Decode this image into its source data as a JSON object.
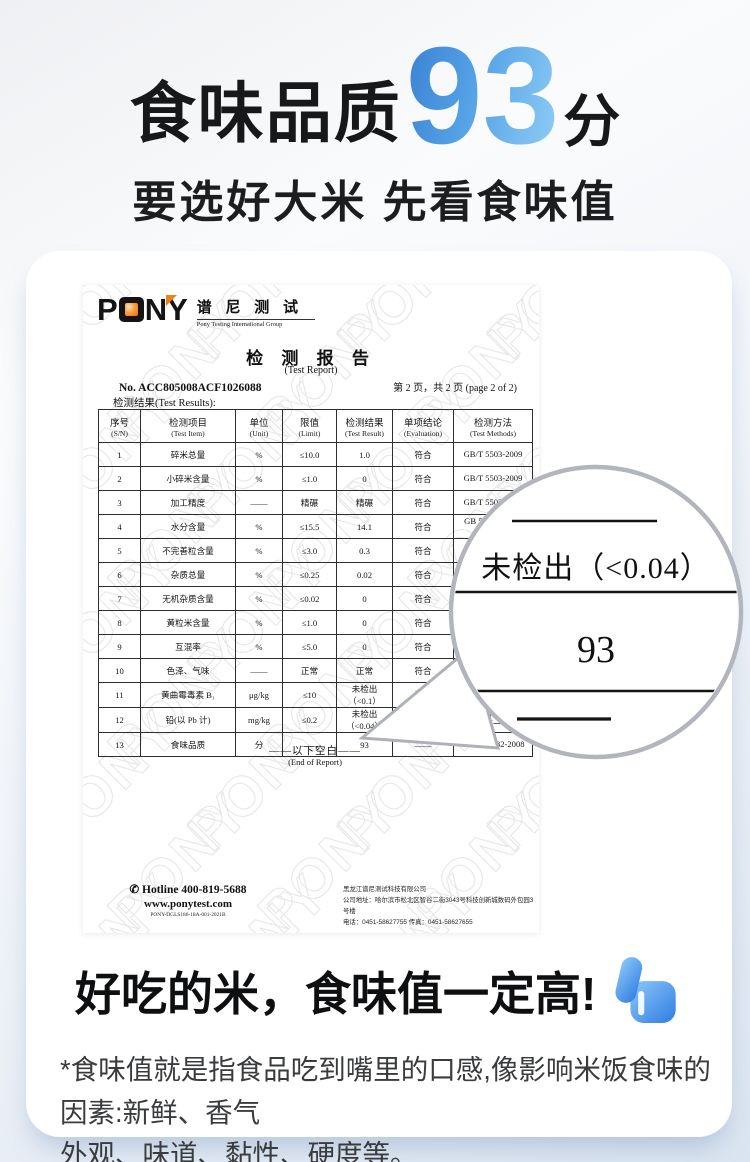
{
  "header": {
    "title_prefix": "食味品质",
    "score": "93",
    "score_unit": "分",
    "subtitle": "要选好大米 先看食味值"
  },
  "report": {
    "logo": {
      "brand_letter_p": "P",
      "brand_letter_n": "N",
      "brand_letter_y": "Y",
      "brand_cn": "谱 尼 测 试",
      "brand_en": "Pony Testing International Group"
    },
    "title_cn": "检 测 报 告",
    "title_en": "(Test Report)",
    "report_no": "No. ACC805008ACF1026088",
    "page_info": "第 2 页，共 2 页 (page 2 of 2)",
    "results_label": "检测结果(Test Results):",
    "watermark": "PONY",
    "table": {
      "headers": [
        {
          "zh": "序号",
          "en": "(S/N)"
        },
        {
          "zh": "检测项目",
          "en": "(Test Item)"
        },
        {
          "zh": "单位",
          "en": "(Unit)"
        },
        {
          "zh": "限值",
          "en": "(Limit)"
        },
        {
          "zh": "检测结果",
          "en": "(Test Result)"
        },
        {
          "zh": "单项结论",
          "en": "(Evaluation)"
        },
        {
          "zh": "检测方法",
          "en": "(Test Methods)"
        }
      ],
      "rows": [
        [
          "1",
          "碎米总量",
          "%",
          "≤10.0",
          "1.0",
          "符合",
          "GB/T 5503-2009"
        ],
        [
          "2",
          "小碎米含量",
          "%",
          "≤1.0",
          "0",
          "符合",
          "GB/T 5503-2009"
        ],
        [
          "3",
          "加工精度",
          "——",
          "精碾",
          "精碾",
          "符合",
          "GB/T 5502-2018"
        ],
        [
          "4",
          "水分含量",
          "%",
          "≤15.5",
          "14.1",
          "符合",
          "GB 5009.3-2016\n第一法"
        ],
        [
          "5",
          "不完善粒含量",
          "%",
          "≤3.0",
          "0.3",
          "符合",
          "GB/T 5"
        ],
        [
          "6",
          "杂质总量",
          "%",
          "≤0.25",
          "0.02",
          "符合",
          "G"
        ],
        [
          "7",
          "无机杂质含量",
          "%",
          "≤0.02",
          "0",
          "符合",
          ""
        ],
        [
          "8",
          "黄粒米含量",
          "%",
          "≤1.0",
          "0",
          "符合",
          ""
        ],
        [
          "9",
          "互混率",
          "%",
          "≤5.0",
          "0",
          "符合",
          ""
        ],
        [
          "10",
          "色泽、气味",
          "——",
          "正常",
          "正常",
          "符合",
          ""
        ],
        [
          "11",
          "黄曲霉毒素 B₁",
          "μg/kg",
          "≤10",
          "未检出（<0.1）",
          "符合",
          ""
        ],
        [
          "12",
          "铅(以 Pb 计)",
          "mg/kg",
          "≤0.2",
          "未检出（<0.04）",
          "",
          "GB 500\n第一"
        ],
        [
          "13",
          "食味品质",
          "分",
          "——",
          "93",
          "——",
          "GB/T 15682-2008"
        ]
      ]
    },
    "end_note_cn": "——以下空白——",
    "end_note_en": "(End of Report)",
    "footer": {
      "hotline": "Hotline 400-819-5688",
      "website": "www.ponytest.com",
      "doc_code": "PONY-DGLS186-18A-001-2021B",
      "company": "黑龙江谱尼测试科技有限公司",
      "address": "公司地址：哈尔滨市松北区智谷二街3043号科技创新城数码外包园3号楼",
      "phone": "电话：0451-58627755 传真：0451-58627655"
    }
  },
  "magnifier": {
    "value_top": "未检出（<0.04）",
    "value_bottom": "93"
  },
  "bottom": {
    "headline": "好吃的米，食味值一定高!",
    "note_line1": "*食味值就是指食品吃到嘴里的口感,像影响米饭食味的因素:新鲜、香气",
    "note_line2": "外观、味道、黏性、硬度等。"
  },
  "colors": {
    "score_blue_dark": "#3b84d4",
    "score_blue_light": "#8ccaf4",
    "logo_orange": "#f07f15",
    "thumb_blue_dark": "#2f7de2",
    "thumb_blue_light": "#8ec8f8"
  }
}
